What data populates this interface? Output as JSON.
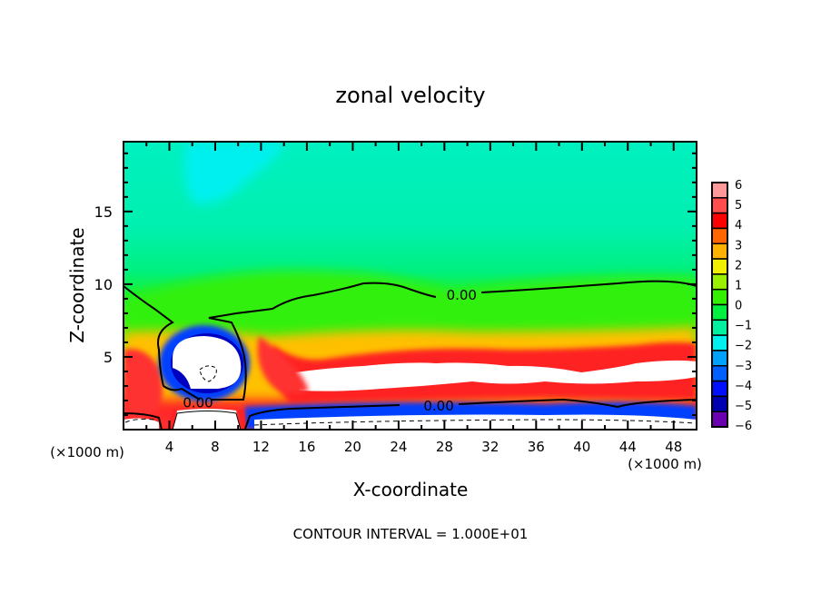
{
  "chart_data": {
    "type": "heatmap",
    "subtype": "filled-contour",
    "title": "zonal velocity",
    "xlabel": "X-coordinate",
    "ylabel": "Z-coordinate",
    "x_unit_label": "(×1000 m)",
    "x_unit_label_right": "(×1000 m)",
    "xlim": [
      0,
      50
    ],
    "ylim": [
      0,
      19.8
    ],
    "x_ticks": [
      4,
      8,
      12,
      16,
      20,
      24,
      28,
      32,
      36,
      40,
      44,
      48
    ],
    "x_tick_labels": [
      "4",
      "8",
      "12",
      "16",
      "20",
      "24",
      "28",
      "32",
      "36",
      "40",
      "44",
      "48"
    ],
    "x_minor_step": 2,
    "y_ticks": [
      5,
      10,
      15
    ],
    "y_tick_labels": [
      "5",
      "10",
      "15"
    ],
    "y_minor_step": 1,
    "footer": "CONTOUR INTERVAL = 1.000E+01",
    "contour_labels": [
      {
        "text": "0.00",
        "x": 29.5,
        "z": 9.3
      },
      {
        "text": "0.00",
        "x": 6.5,
        "z": 1.9
      },
      {
        "text": "0.00",
        "x": 27.5,
        "z": 1.7
      }
    ],
    "colorbar": {
      "ticks": [
        "6",
        "5",
        "4",
        "3",
        "2",
        "1",
        "0",
        "−1",
        "−2",
        "−3",
        "−4",
        "−5",
        "−6"
      ],
      "range": [
        -6,
        6
      ],
      "colors": [
        "#ff9999",
        "#ff4c4c",
        "#ff0000",
        "#ff6600",
        "#ffb300",
        "#f0f000",
        "#99f000",
        "#33f000",
        "#00f040",
        "#00f0a0",
        "#00f0f0",
        "#00a0ff",
        "#0060ff",
        "#0010ff",
        "#0000b0",
        "#6a00b0"
      ],
      "over_color": "#ffffff",
      "under_color": "#ffffff"
    },
    "field_description_regions": [
      {
        "name": "upper-background",
        "value": -1.5
      },
      {
        "name": "upper-min-core",
        "value": -2.0
      },
      {
        "name": "mid-layer",
        "value": 0.5
      },
      {
        "name": "lower-jet",
        "value": 6.5
      },
      {
        "name": "surface-reverse-flow",
        "value": -6.5
      },
      {
        "name": "vortex-core",
        "value": -6.5
      }
    ]
  }
}
